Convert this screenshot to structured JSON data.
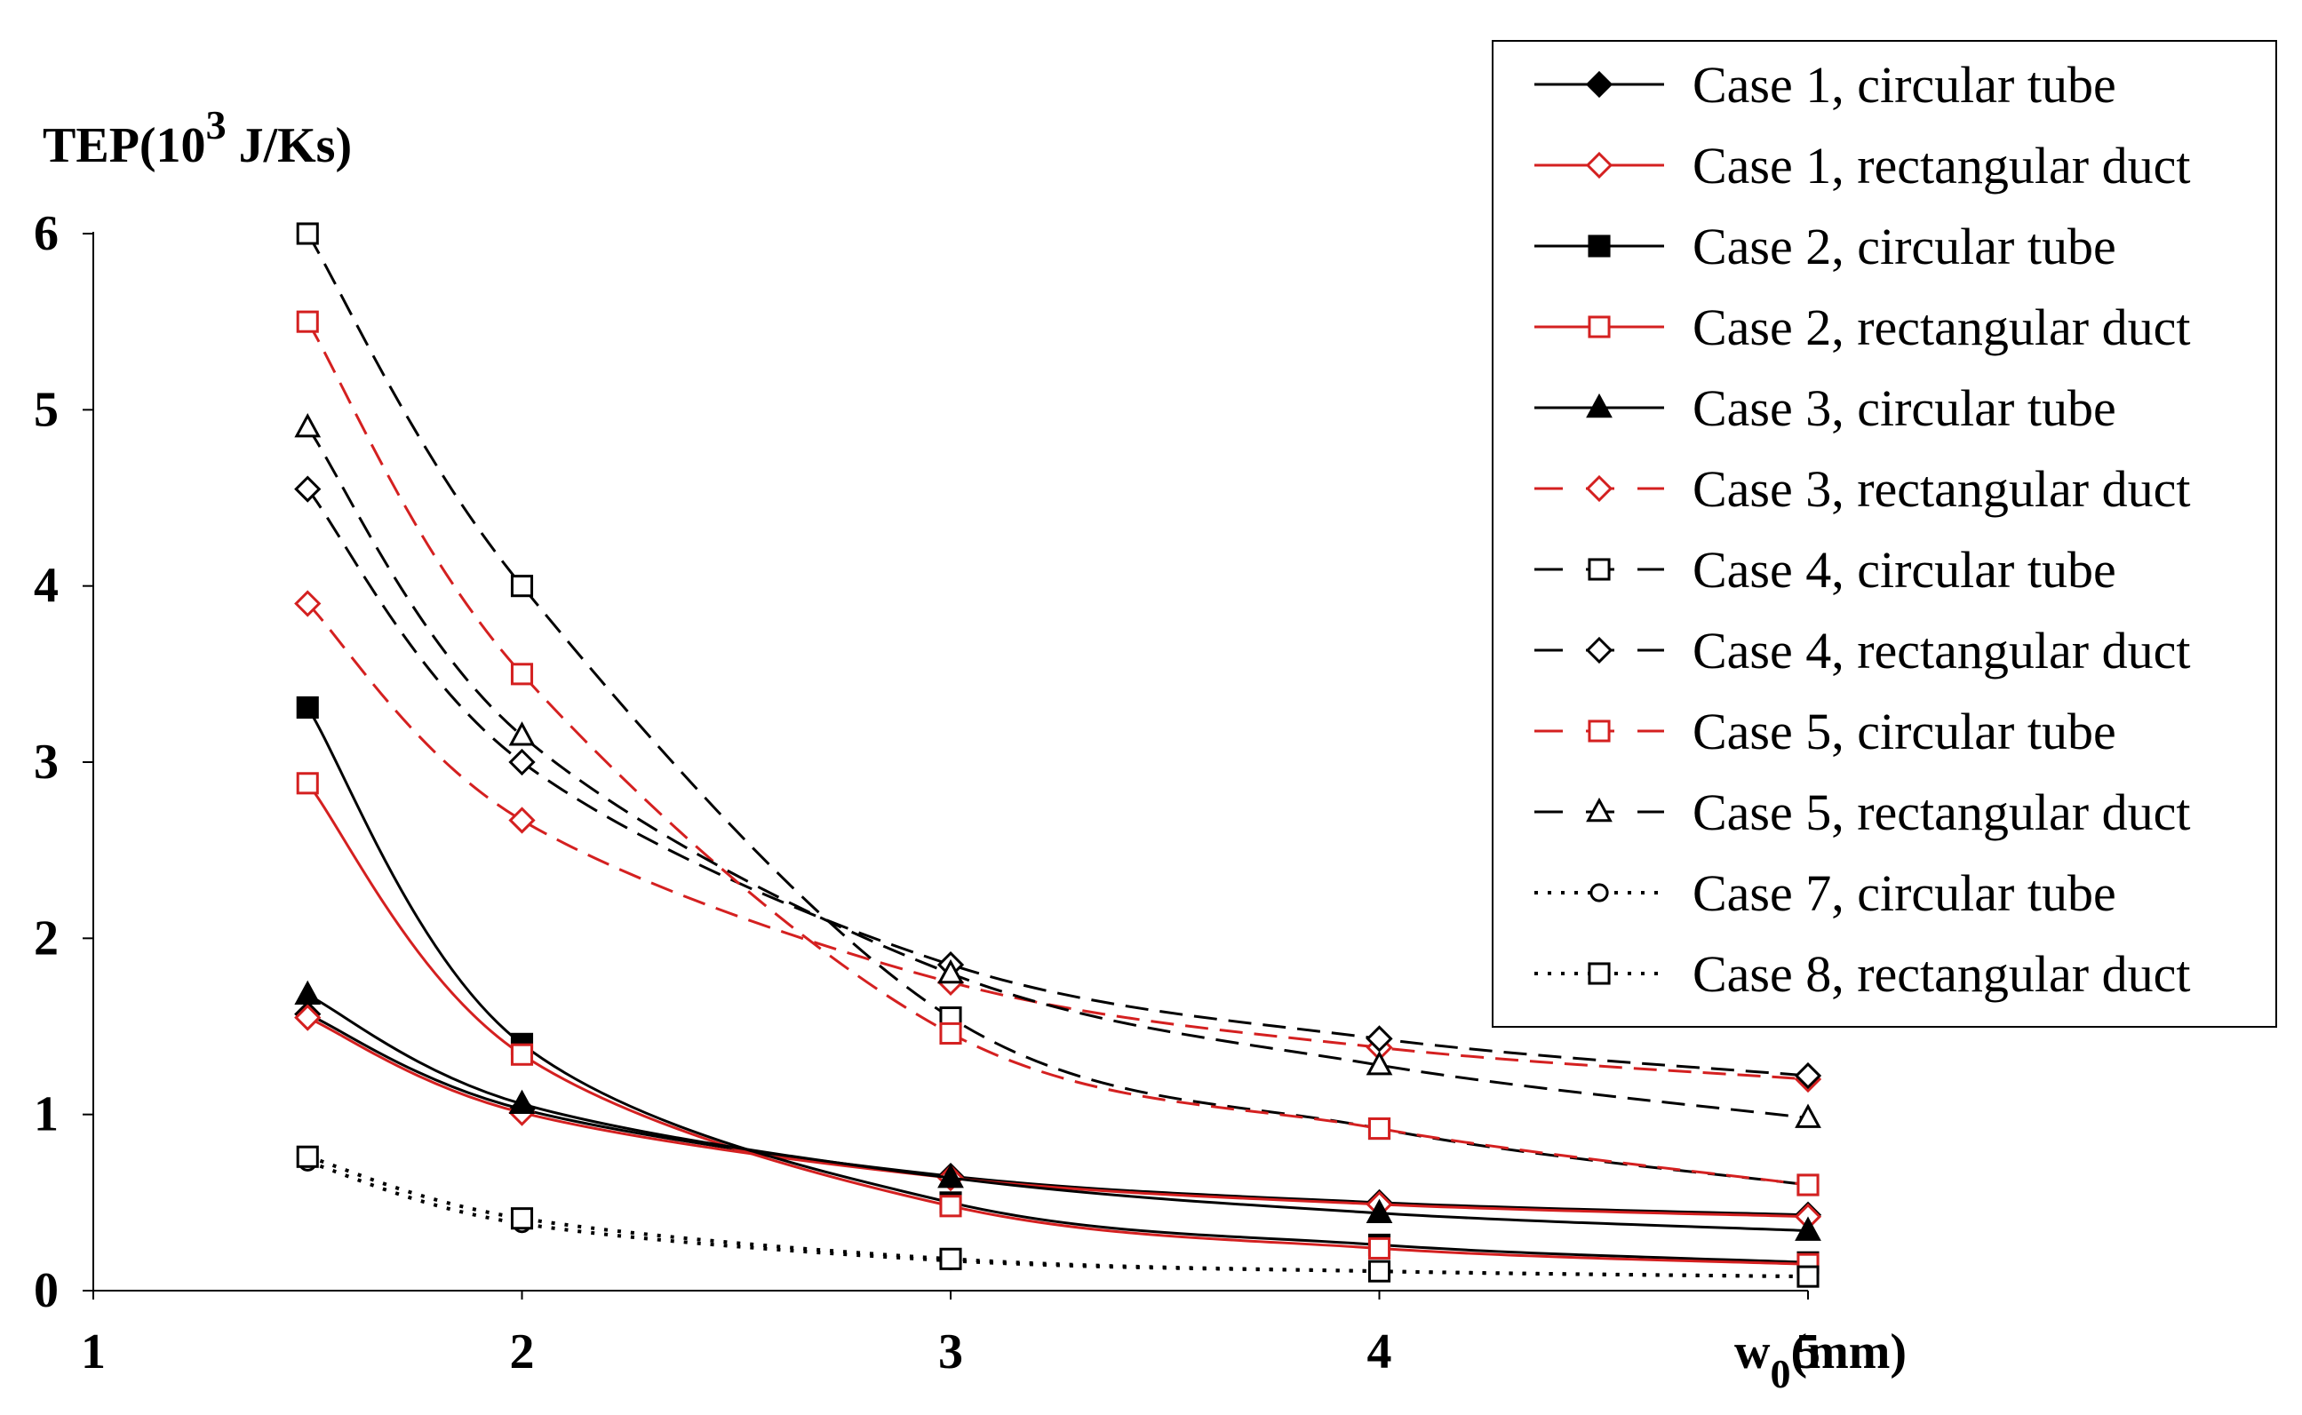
{
  "chart_data": {
    "type": "line",
    "title": "",
    "ylabel": {
      "main": "TEP(10",
      "sup": "3",
      "rest": " J/Ks)"
    },
    "xlabel": {
      "main": "w",
      "sub": "0",
      "rest": "(mm)"
    },
    "xlim": [
      1,
      5
    ],
    "ylim": [
      0,
      6
    ],
    "xticks": [
      1,
      2,
      3,
      4,
      5
    ],
    "yticks": [
      0,
      1,
      2,
      3,
      4,
      5,
      6
    ],
    "legend_position": "top-right",
    "x": [
      1.5,
      2,
      3,
      4,
      5
    ],
    "series": [
      {
        "name": "Case 1, circular tube",
        "color": "#000000",
        "dash": "solid",
        "marker": "diamond",
        "filled": true,
        "values": [
          1.57,
          1.03,
          0.65,
          0.5,
          0.43
        ]
      },
      {
        "name": "Case 1, rectangular duct",
        "color": "#d42020",
        "dash": "solid",
        "marker": "diamond",
        "filled": false,
        "values": [
          1.55,
          1.01,
          0.64,
          0.49,
          0.42
        ]
      },
      {
        "name": "Case 2, circular tube",
        "color": "#000000",
        "dash": "solid",
        "marker": "square",
        "filled": true,
        "values": [
          3.31,
          1.4,
          0.5,
          0.26,
          0.16
        ]
      },
      {
        "name": "Case 2, rectangular duct",
        "color": "#d42020",
        "dash": "solid",
        "marker": "square",
        "filled": false,
        "values": [
          2.88,
          1.34,
          0.48,
          0.24,
          0.15
        ]
      },
      {
        "name": "Case 3, circular tube",
        "color": "#000000",
        "dash": "solid",
        "marker": "triangle",
        "filled": true,
        "values": [
          1.68,
          1.06,
          0.64,
          0.44,
          0.34
        ]
      },
      {
        "name": "Case 3, rectangular duct",
        "color": "#d42020",
        "dash": "dashed",
        "marker": "diamond",
        "filled": false,
        "values": [
          3.9,
          2.67,
          1.75,
          1.38,
          1.2
        ]
      },
      {
        "name": "Case 4, circular tube",
        "color": "#000000",
        "dash": "dashed",
        "marker": "square",
        "filled": false,
        "values": [
          6.0,
          4.0,
          1.55,
          0.92,
          0.6
        ]
      },
      {
        "name": "Case 4, rectangular duct",
        "color": "#000000",
        "dash": "dashed",
        "marker": "diamond",
        "filled": false,
        "values": [
          4.55,
          3.0,
          1.85,
          1.43,
          1.22
        ]
      },
      {
        "name": "Case 5, circular tube",
        "color": "#d42020",
        "dash": "dashed",
        "marker": "square",
        "filled": false,
        "values": [
          5.5,
          3.5,
          1.46,
          0.92,
          0.6
        ]
      },
      {
        "name": "Case 5, rectangular duct",
        "color": "#000000",
        "dash": "dashed",
        "marker": "triangle",
        "filled": false,
        "values": [
          4.9,
          3.15,
          1.8,
          1.28,
          0.98
        ]
      },
      {
        "name": "Case 7, circular tube",
        "color": "#000000",
        "dash": "dotted",
        "marker": "circle",
        "filled": false,
        "values": [
          0.73,
          0.38,
          0.17,
          0.11,
          0.08
        ]
      },
      {
        "name": "Case 8, rectangular duct",
        "color": "#000000",
        "dash": "dotted",
        "marker": "square",
        "filled": false,
        "values": [
          0.76,
          0.41,
          0.18,
          0.11,
          0.08
        ]
      }
    ]
  }
}
